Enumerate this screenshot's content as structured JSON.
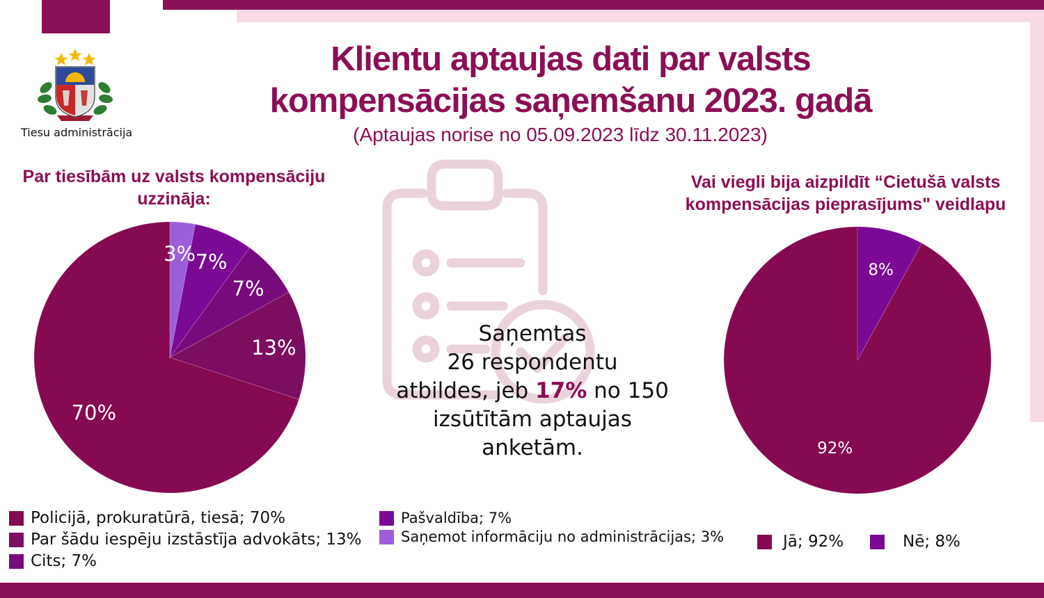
{
  "organization": {
    "name": "Tiesu administrācija"
  },
  "header": {
    "title_line1": "Klientu aptaujas dati par valsts",
    "title_line2": "kompensācijas saņemšanu 2023. gadā",
    "subtitle": "(Aptaujas norise no 05.09.2023 līdz 30.11.2023)"
  },
  "center": {
    "line1": "Saņemtas",
    "line2": "26 respondentu",
    "line3_pre": "atbildes, jeb ",
    "line3_highlight": "17%",
    "line3_post": " no 150",
    "line4": "izsūtītām aptaujas",
    "line5": "anketām."
  },
  "colors": {
    "brand": "#8b0f54",
    "pink_light": "#f6dbe6",
    "slice_1": "#850a4f",
    "slice_2": "#7b0e60",
    "slice_3": "#770a7d",
    "slice_4": "#7a0a94",
    "slice_5": "#9e5ed9"
  },
  "chart_data": [
    {
      "type": "pie",
      "title_line1": "Par tiesībām uz valsts kompensāciju",
      "title_line2": "uzzināja:",
      "slices": [
        {
          "label": "Policijā, prokuratūrā, tiesā; 70%",
          "value": 70,
          "pct_label": "70%",
          "color": "#850a4f"
        },
        {
          "label": "Par šādu iespēju izstāstīja advokāts; 13%",
          "value": 13,
          "pct_label": "13%",
          "color": "#7b0e60"
        },
        {
          "label": "Cits; 7%",
          "value": 7,
          "pct_label": "7%",
          "color": "#770a7d"
        },
        {
          "label": "Pašvaldība; 7%",
          "value": 7,
          "pct_label": "7%",
          "color": "#7a0a94"
        },
        {
          "label": "Saņemot informāciju no administrācijas; 3%",
          "value": 3,
          "pct_label": "3%",
          "color": "#9e5ed9"
        }
      ]
    },
    {
      "type": "pie",
      "title_line1": "Vai viegli bija aizpildīt “Cietušā valsts",
      "title_line2": "kompensācijas pieprasījums\" veidlapu",
      "slices": [
        {
          "label": "Jā; 92%",
          "value": 92,
          "pct_label": "92%",
          "color": "#850a4f"
        },
        {
          "label": "Nē; 8%",
          "value": 8,
          "pct_label": "8%",
          "color": "#7a0a94"
        }
      ]
    }
  ]
}
